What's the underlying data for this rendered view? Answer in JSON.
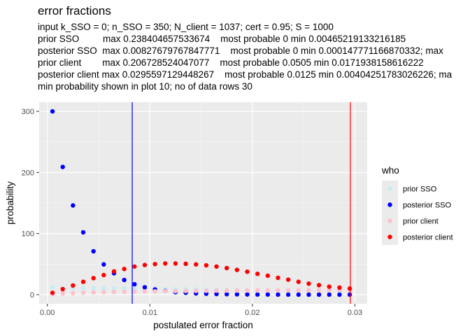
{
  "chart_data": {
    "type": "scatter",
    "title": "error fractions",
    "subtitle_lines": [
      "input k_SSO = 0; n_SSO = 350; N_client = 1037; cert = 0.95; S = 1000",
      "prior SSO         max 0.238404657533674    most probable 0 min 0.00465219133216185",
      "posterior SSO  max 0.00827679767847771    most probable 0 min 0.000147771166870332; max",
      "prior client        max 0.206728524047077    most probable 0.0505 min 0.0171938158616222",
      "posterior client max 0.0295597129448267    most probable 0.0125 min 0.00404251783026226; ma",
      "min probability shown in plot 10; no of data rows 30"
    ],
    "xlabel": "postulated error fraction",
    "ylabel": "probability",
    "xlim": [
      -0.0008,
      0.0312
    ],
    "ylim": [
      -15,
      315
    ],
    "x_ticks": [
      0,
      0.01,
      0.02,
      0.03
    ],
    "x_tick_labels": [
      "0.00",
      "0.01",
      "0.02",
      "0.03"
    ],
    "y_ticks": [
      0,
      100,
      200,
      300
    ],
    "y_tick_labels": [
      "0",
      "100",
      "200",
      "300"
    ],
    "grid": true,
    "legend": {
      "title": "who",
      "placement": "right"
    },
    "x": [
      0.0005,
      0.0015,
      0.0025,
      0.0035,
      0.0045,
      0.0055,
      0.0065,
      0.0075,
      0.0085,
      0.0095,
      0.0105,
      0.0115,
      0.0125,
      0.0135,
      0.0145,
      0.0155,
      0.0165,
      0.0175,
      0.0185,
      0.0195,
      0.0205,
      0.0215,
      0.0225,
      0.0235,
      0.0245,
      0.0255,
      0.0265,
      0.0275,
      0.0285,
      0.0295
    ],
    "series": [
      {
        "name": "prior SSO",
        "color": "#c6ecf5",
        "values": [
          12,
          11,
          11,
          10.8,
          10.6,
          10.4,
          10.2,
          10,
          9.8,
          9.6,
          9.4,
          9.2,
          9,
          8.8,
          8.6,
          8.4,
          8.2,
          8,
          7.8,
          7.6,
          7.4,
          7.2,
          7,
          6.8,
          6.6,
          6.4,
          6.2,
          6,
          5.8,
          5.6
        ]
      },
      {
        "name": "posterior SSO",
        "color": "#0000ff",
        "values": [
          300,
          209,
          146,
          102,
          71,
          49.5,
          35,
          24,
          17,
          12,
          8.5,
          6,
          4,
          3,
          2,
          1.5,
          1,
          0.7,
          0.5,
          0.3,
          0.2,
          0.15,
          0.1,
          0.07,
          0.05,
          0.03,
          0.02,
          0.01,
          0.01,
          0
        ]
      },
      {
        "name": "prior client",
        "color": "#ffc0cb",
        "values": [
          1,
          2,
          2.5,
          3,
          3.5,
          4,
          4.3,
          4.6,
          4.9,
          5.2,
          5.4,
          5.6,
          5.8,
          6,
          6.2,
          6.3,
          6.5,
          6.6,
          6.7,
          6.8,
          6.9,
          7,
          7,
          7.1,
          7.1,
          7.2,
          7.2,
          7.2,
          7.2,
          7.2
        ]
      },
      {
        "name": "posterior client",
        "color": "#ff0000",
        "values": [
          3,
          9,
          15,
          21,
          27,
          32,
          38,
          42,
          46,
          48.5,
          50,
          51,
          51,
          50.5,
          49.5,
          48,
          46,
          43.5,
          40.5,
          37.5,
          34,
          31,
          27.5,
          24.5,
          21,
          18,
          15.5,
          13,
          11.5,
          10
        ]
      }
    ],
    "vlines": [
      {
        "x": 0.00827679767847771,
        "color": "#0000ff"
      },
      {
        "x": 0.0295597129448267,
        "color": "#ff0000"
      }
    ]
  }
}
